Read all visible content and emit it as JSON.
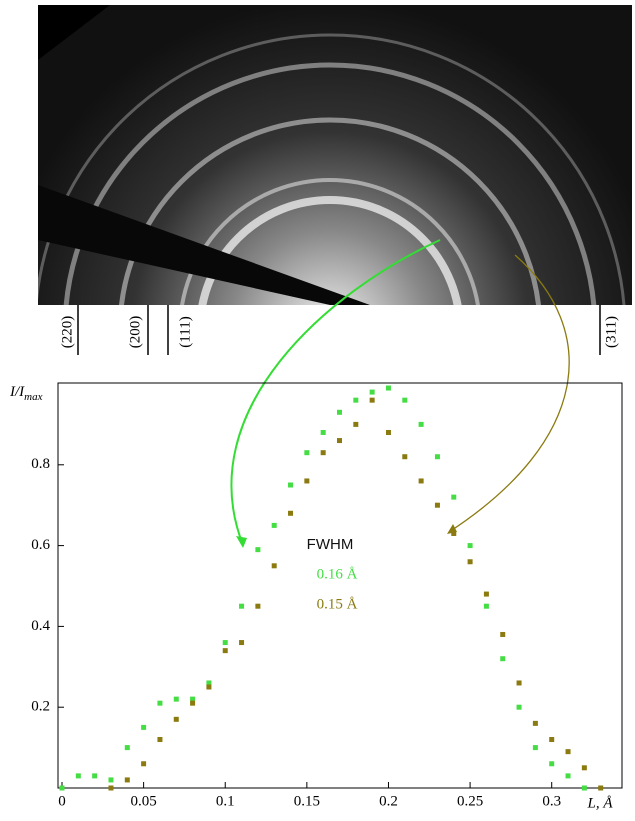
{
  "chart_data": {
    "type": "scatter",
    "image_labels": [
      "(220)",
      "(200)",
      "(111)",
      "(311)"
    ],
    "ylabel": "I/I",
    "ylabel_sub": "max",
    "xlabel": "L, Å",
    "annotations": [
      {
        "text": "FWHM",
        "color": "#111111"
      },
      {
        "text": "0.16 Å",
        "color": "#44dd44"
      },
      {
        "text": "0.15 Å",
        "color": "#8a7a10"
      }
    ],
    "xlim": [
      0,
      0.34
    ],
    "ylim": [
      0,
      1.0
    ],
    "xticks": [
      0,
      0.05,
      0.1,
      0.15,
      0.2,
      0.25,
      0.3
    ],
    "yticks": [
      0.2,
      0.4,
      0.6,
      0.8
    ],
    "series": [
      {
        "color": "#44dd44",
        "x": [
          0,
          0.01,
          0.02,
          0.03,
          0.04,
          0.05,
          0.06,
          0.07,
          0.08,
          0.09,
          0.1,
          0.11,
          0.12,
          0.13,
          0.14,
          0.15,
          0.16,
          0.17,
          0.18,
          0.19,
          0.2,
          0.21,
          0.22,
          0.23,
          0.24,
          0.25,
          0.26,
          0.27,
          0.28,
          0.29,
          0.3,
          0.31,
          0.32
        ],
        "values": [
          0,
          0.03,
          0.03,
          0.02,
          0.1,
          0.15,
          0.21,
          0.22,
          0.22,
          0.26,
          0.36,
          0.45,
          0.59,
          0.65,
          0.75,
          0.83,
          0.88,
          0.93,
          0.96,
          0.98,
          0.99,
          0.96,
          0.9,
          0.82,
          0.72,
          0.6,
          0.45,
          0.32,
          0.2,
          0.1,
          0.06,
          0.03,
          0.0
        ]
      },
      {
        "color": "#8a7a10",
        "x": [
          0.03,
          0.04,
          0.05,
          0.06,
          0.07,
          0.08,
          0.09,
          0.1,
          0.11,
          0.12,
          0.13,
          0.14,
          0.15,
          0.16,
          0.17,
          0.18,
          0.19,
          0.2,
          0.21,
          0.22,
          0.23,
          0.24,
          0.25,
          0.26,
          0.27,
          0.28,
          0.29,
          0.3,
          0.31,
          0.32,
          0.33
        ],
        "values": [
          0,
          0.02,
          0.06,
          0.12,
          0.17,
          0.21,
          0.25,
          0.34,
          0.36,
          0.45,
          0.55,
          0.68,
          0.76,
          0.83,
          0.86,
          0.9,
          0.96,
          0.88,
          0.82,
          0.76,
          0.7,
          0.63,
          0.56,
          0.48,
          0.38,
          0.26,
          0.16,
          0.12,
          0.09,
          0.05,
          0.0
        ]
      }
    ]
  }
}
